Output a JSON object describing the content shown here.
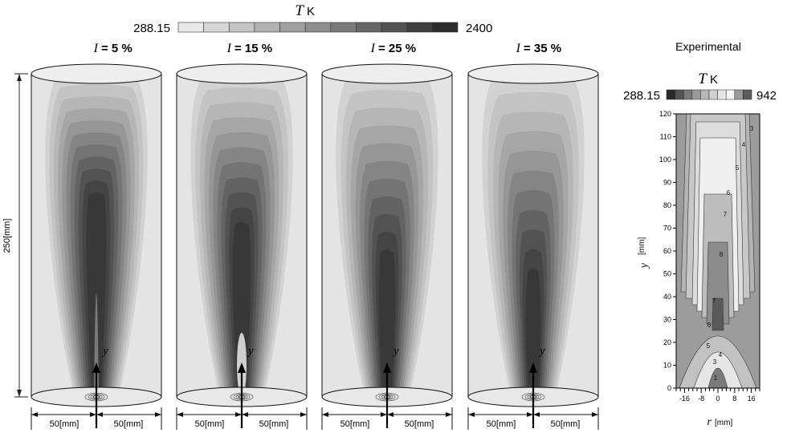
{
  "main_legend": {
    "symbol": "T",
    "unit": "K",
    "min_label": "288.15",
    "max_label": "2400",
    "colors": [
      "#e8e8e8",
      "#d6d6d6",
      "#c4c4c4",
      "#b2b2b2",
      "#a0a0a0",
      "#8e8e8e",
      "#7a7a7a",
      "#666666",
      "#525252",
      "#3e3e3e",
      "#2c2c2c"
    ]
  },
  "panels": [
    {
      "id": "i5",
      "symbol": "I",
      "value_label": "= 5 %"
    },
    {
      "id": "i15",
      "symbol": "I",
      "value_label": "= 15 %"
    },
    {
      "id": "i25",
      "symbol": "I",
      "value_label": "= 25 %"
    },
    {
      "id": "i35",
      "symbol": "I",
      "value_label": "= 35 %"
    }
  ],
  "axis_symbol": "y",
  "dimension": {
    "height_label": "250[mm]",
    "left_radius_label": "50[mm]",
    "right_radius_label": "50[mm]"
  },
  "experimental": {
    "title": "Experimental",
    "legend_symbol": "T",
    "legend_unit": "K",
    "min_label": "288.15",
    "max_label": "942",
    "legend_colors": [
      "#2a2a2a",
      "#555555",
      "#7a7a7a",
      "#9a9a9a",
      "#b8b8b8",
      "#d0d0d0",
      "#e6e6e6",
      "#f4f4f4",
      "#9a9a9a",
      "#5a5a5a"
    ],
    "y_axis_symbol": "y",
    "y_axis_unit": "[mm]",
    "x_axis_symbol": "r",
    "x_axis_unit": "[mm]",
    "y_ticks": [
      "0",
      "10",
      "20",
      "30",
      "40",
      "50",
      "60",
      "70",
      "80",
      "90",
      "100",
      "110",
      "120"
    ],
    "x_ticks": [
      "-16",
      "-8",
      "0",
      "8",
      "16"
    ],
    "contour_labels": [
      "3",
      "4",
      "5",
      "6",
      "7",
      "8",
      "7",
      "6",
      "5",
      "4",
      "3",
      "1"
    ]
  }
}
